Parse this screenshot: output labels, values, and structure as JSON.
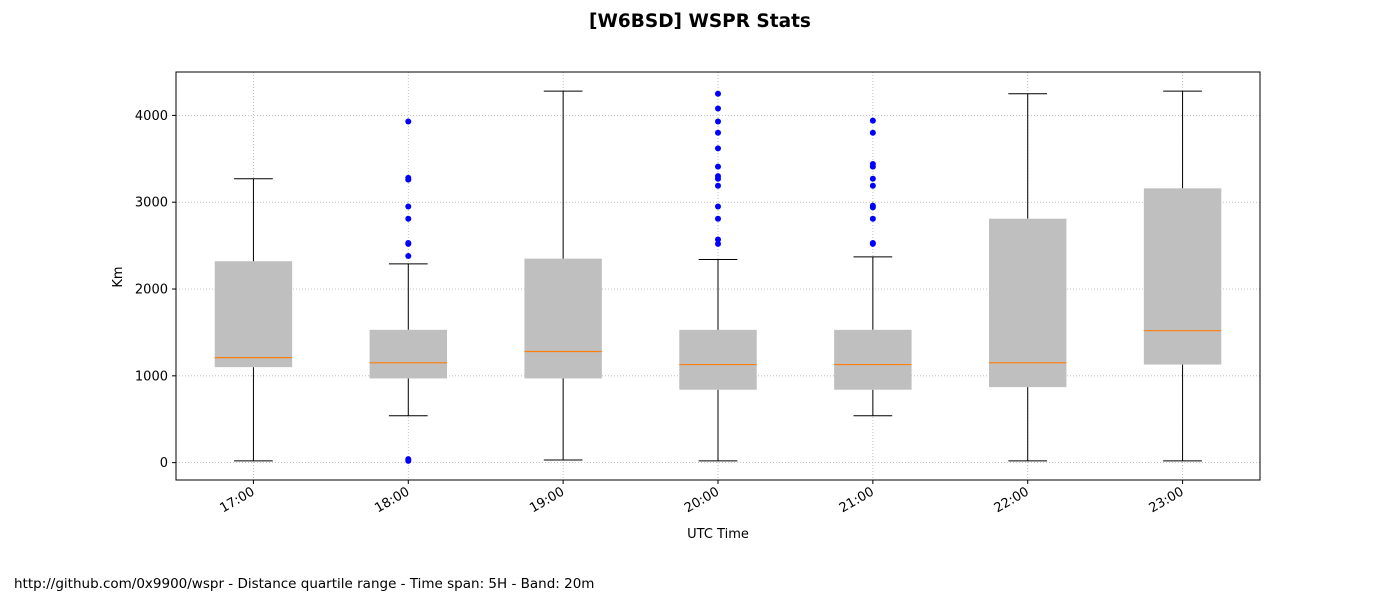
{
  "chart_data": {
    "type": "box",
    "title": "[W6BSD] WSPR Stats",
    "xlabel": "UTC Time",
    "ylabel": "Km",
    "ylim": [
      -200,
      4500
    ],
    "yticks": [
      0,
      1000,
      2000,
      3000,
      4000
    ],
    "grid": true,
    "categories": [
      "17:00",
      "18:00",
      "19:00",
      "20:00",
      "21:00",
      "22:00",
      "23:00"
    ],
    "boxes": [
      {
        "category": "17:00",
        "whisker_low": 20,
        "q1": 1100,
        "median": 1210,
        "q3": 2320,
        "whisker_high": 3270,
        "outliers": []
      },
      {
        "category": "18:00",
        "whisker_low": 540,
        "q1": 970,
        "median": 1150,
        "q3": 1530,
        "whisker_high": 2290,
        "outliers": [
          20,
          40,
          2380,
          2520,
          2530,
          2810,
          2950,
          3260,
          3280,
          3930
        ]
      },
      {
        "category": "19:00",
        "whisker_low": 30,
        "q1": 970,
        "median": 1280,
        "q3": 2350,
        "whisker_high": 4280,
        "outliers": []
      },
      {
        "category": "20:00",
        "whisker_low": 20,
        "q1": 840,
        "median": 1130,
        "q3": 1530,
        "whisker_high": 2340,
        "outliers": [
          2520,
          2570,
          2810,
          2950,
          3190,
          3270,
          3300,
          3410,
          3620,
          3800,
          3930,
          4080,
          4250
        ]
      },
      {
        "category": "21:00",
        "whisker_low": 540,
        "q1": 840,
        "median": 1130,
        "q3": 1530,
        "whisker_high": 2370,
        "outliers": [
          2520,
          2530,
          2810,
          2940,
          2960,
          3190,
          3270,
          3410,
          3440,
          3800,
          3940
        ]
      },
      {
        "category": "22:00",
        "whisker_low": 20,
        "q1": 870,
        "median": 1150,
        "q3": 2810,
        "whisker_high": 4250,
        "outliers": []
      },
      {
        "category": "23:00",
        "whisker_low": 20,
        "q1": 1130,
        "median": 1520,
        "q3": 3160,
        "whisker_high": 4280,
        "outliers": []
      }
    ],
    "colors": {
      "box_fill": "#bfbfbf",
      "median": "#ff7f0e",
      "outlier": "#0000ff",
      "whisker": "#000000",
      "grid": "#b0b0b0"
    }
  },
  "footer": "http://github.com/0x9900/wspr - Distance quartile range - Time span: 5H - Band: 20m"
}
